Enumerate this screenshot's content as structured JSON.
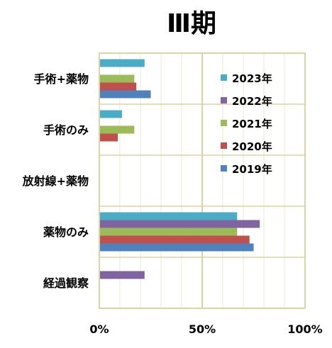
{
  "chart_data": {
    "type": "bar",
    "orientation": "horizontal",
    "title": "Ⅲ期",
    "categories": [
      "手術+薬物",
      "手術のみ",
      "放射線+薬物",
      "薬物のみ",
      "経過観察"
    ],
    "series": [
      {
        "name": "2023年",
        "color": "#4BACC6",
        "values": [
          22,
          11,
          0,
          67,
          0
        ]
      },
      {
        "name": "2022年",
        "color": "#8064A2",
        "values": [
          0,
          0,
          0,
          78,
          22
        ]
      },
      {
        "name": "2021年",
        "color": "#9BBB59",
        "values": [
          17,
          17,
          0,
          67,
          0
        ]
      },
      {
        "name": "2020年",
        "color": "#C0504D",
        "values": [
          18,
          9,
          0,
          73,
          0
        ]
      },
      {
        "name": "2019年",
        "color": "#4F81BD",
        "values": [
          25,
          0,
          0,
          75,
          0
        ]
      }
    ],
    "xlim": [
      0,
      100
    ],
    "x_ticks": [
      "0%",
      "50%",
      "100%"
    ],
    "grid": true,
    "legend_position": "top-right"
  },
  "colors": {
    "plot_border": "#D9D3A6",
    "grid_major": "#D9D3A6",
    "grid_minor": "#ECE8CF"
  }
}
